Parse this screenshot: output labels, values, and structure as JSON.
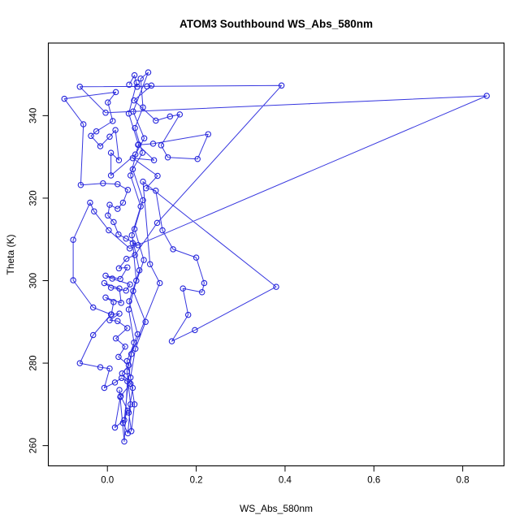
{
  "title": "ATOM3 Southbound WS_Abs_580nm",
  "colors": {
    "series": "#2525DC",
    "axis": "#000000",
    "background": "#ffffff"
  },
  "chart_data": {
    "type": "line",
    "title": "ATOM3 Southbound WS_Abs_580nm",
    "xlabel": "WS_Abs_580nm",
    "ylabel": "Theta (K)",
    "legend": "none",
    "grid": false,
    "marker": "open-circle",
    "line_color": "#2525DC",
    "xlim": [
      -0.133,
      0.893
    ],
    "ylim": [
      255.1,
      357.6
    ],
    "x_ticks": [
      0.0,
      0.2,
      0.4,
      0.6,
      0.8
    ],
    "x_tick_labels": [
      "0.0",
      "0.2",
      "0.4",
      "0.6",
      "0.8"
    ],
    "y_ticks": [
      260,
      280,
      300,
      320,
      340
    ],
    "y_tick_labels": [
      "260",
      "280",
      "300",
      "320",
      "340"
    ],
    "points": [
      [
        0.049,
        347.5
      ],
      [
        0.061,
        349.8
      ],
      [
        0.067,
        347.0
      ],
      [
        0.089,
        347.1
      ],
      [
        0.099,
        347.3
      ],
      [
        0.06,
        343.7
      ],
      [
        0.109,
        338.8
      ],
      [
        0.141,
        339.8
      ],
      [
        0.163,
        340.3
      ],
      [
        0.121,
        332.8
      ],
      [
        0.136,
        329.9
      ],
      [
        0.203,
        329.5
      ],
      [
        0.227,
        335.5
      ],
      [
        0.103,
        333.2
      ],
      [
        0.069,
        332.9
      ],
      [
        0.105,
        329.2
      ],
      [
        0.057,
        329.7
      ],
      [
        0.113,
        325.4
      ],
      [
        0.087,
        322.4
      ],
      [
        0.109,
        321.8
      ],
      [
        0.124,
        312.2
      ],
      [
        0.148,
        307.6
      ],
      [
        0.2,
        305.6
      ],
      [
        0.218,
        299.4
      ],
      [
        0.213,
        297.2
      ],
      [
        0.17,
        298.1
      ],
      [
        0.182,
        291.7
      ],
      [
        0.145,
        285.3
      ],
      [
        0.197,
        288.0
      ],
      [
        0.38,
        298.5
      ],
      [
        0.08,
        324.0
      ],
      [
        0.096,
        304.0
      ],
      [
        0.118,
        299.4
      ],
      [
        0.054,
        282.2
      ],
      [
        0.038,
        266.2
      ],
      [
        0.017,
        264.4
      ],
      [
        0.029,
        271.8
      ],
      [
        0.027,
        273.5
      ],
      [
        0.038,
        261.0
      ],
      [
        0.045,
        275.6
      ],
      [
        0.032,
        276.4
      ],
      [
        0.017,
        275.3
      ],
      [
        -0.007,
        274.0
      ],
      [
        0.005,
        278.7
      ],
      [
        -0.016,
        279.0
      ],
      [
        -0.062,
        280.0
      ],
      [
        -0.032,
        286.8
      ],
      [
        0.008,
        291.8
      ],
      [
        -0.032,
        293.5
      ],
      [
        -0.077,
        300.1
      ],
      [
        -0.077,
        309.9
      ],
      [
        -0.039,
        318.9
      ],
      [
        -0.03,
        316.8
      ],
      [
        0.003,
        312.2
      ],
      [
        0.05,
        307.8
      ],
      [
        0.854,
        344.8
      ],
      [
        -0.004,
        340.7
      ],
      [
        -0.062,
        347.0
      ],
      [
        0.392,
        347.3
      ],
      [
        0.112,
        314.0
      ],
      [
        0.062,
        306.2
      ],
      [
        0.043,
        305.3
      ],
      [
        0.026,
        303.0
      ],
      [
        0.045,
        303.2
      ],
      [
        0.029,
        300.4
      ],
      [
        -0.004,
        301.2
      ],
      [
        0.011,
        300.5
      ],
      [
        0.051,
        299.1
      ],
      [
        0.042,
        297.6
      ],
      [
        0.008,
        298.3
      ],
      [
        -0.007,
        299.4
      ],
      [
        0.027,
        298.1
      ],
      [
        0.031,
        294.6
      ],
      [
        -0.004,
        295.9
      ],
      [
        0.014,
        294.8
      ],
      [
        0.009,
        291.8
      ],
      [
        0.027,
        292.0
      ],
      [
        0.005,
        290.4
      ],
      [
        0.023,
        290.2
      ],
      [
        0.045,
        288.5
      ],
      [
        0.019,
        286.0
      ],
      [
        0.04,
        284.0
      ],
      [
        0.025,
        281.5
      ],
      [
        0.048,
        279.5
      ],
      [
        0.033,
        277.5
      ],
      [
        0.052,
        275.0
      ],
      [
        0.03,
        272.0
      ],
      [
        0.046,
        268.5
      ],
      [
        0.035,
        265.5
      ],
      [
        0.046,
        263.0
      ],
      [
        0.052,
        270.0
      ],
      [
        0.044,
        278.0
      ],
      [
        0.06,
        285.0
      ],
      [
        0.048,
        293.0
      ],
      [
        0.065,
        300.0
      ],
      [
        0.057,
        309.1
      ],
      [
        0.069,
        308.6
      ],
      [
        0.042,
        310.2
      ],
      [
        0.025,
        311.2
      ],
      [
        0.014,
        314.2
      ],
      [
        0.001,
        315.8
      ],
      [
        0.005,
        318.4
      ],
      [
        0.023,
        317.4
      ],
      [
        0.035,
        318.9
      ],
      [
        0.046,
        322.0
      ],
      [
        0.023,
        323.4
      ],
      [
        -0.01,
        323.6
      ],
      [
        -0.06,
        323.2
      ],
      [
        -0.054,
        337.9
      ],
      [
        -0.097,
        344.1
      ],
      [
        0.019,
        345.7
      ],
      [
        0.001,
        343.2
      ],
      [
        0.012,
        338.7
      ],
      [
        -0.025,
        336.2
      ],
      [
        -0.037,
        335.1
      ],
      [
        -0.016,
        332.6
      ],
      [
        0.005,
        334.9
      ],
      [
        0.018,
        336.5
      ],
      [
        0.026,
        329.2
      ],
      [
        0.008,
        331.0
      ],
      [
        0.008,
        325.5
      ],
      [
        0.063,
        330.6
      ],
      [
        0.083,
        334.5
      ],
      [
        0.058,
        341.0
      ],
      [
        0.092,
        350.5
      ],
      [
        0.075,
        349.0
      ],
      [
        0.08,
        342.0
      ],
      [
        0.062,
        337.0
      ],
      [
        0.079,
        331.0
      ],
      [
        0.057,
        327.0
      ],
      [
        0.08,
        319.5
      ],
      [
        0.061,
        312.5
      ],
      [
        0.082,
        305.0
      ],
      [
        0.058,
        297.5
      ],
      [
        0.086,
        290.0
      ],
      [
        0.063,
        283.5
      ],
      [
        0.052,
        276.5
      ],
      [
        0.061,
        270.0
      ],
      [
        0.054,
        263.5
      ],
      [
        0.048,
        268.0
      ],
      [
        0.057,
        274.0
      ],
      [
        0.044,
        280.5
      ],
      [
        0.068,
        287.0
      ],
      [
        0.049,
        295.0
      ],
      [
        0.072,
        302.5
      ],
      [
        0.055,
        311.0
      ],
      [
        0.075,
        318.0
      ],
      [
        0.052,
        325.5
      ],
      [
        0.07,
        333.0
      ],
      [
        0.048,
        340.5
      ],
      [
        0.066,
        348.0
      ]
    ]
  }
}
